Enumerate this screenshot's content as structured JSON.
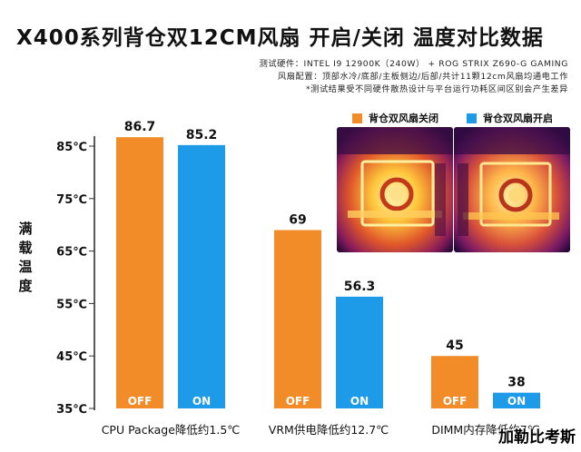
{
  "header": {
    "title": "X400系列背仓双12CM风扇 开启/关闭 温度对比数据",
    "info_line1": "测试硬件：INTEL I9 12900K（240W） + ROG STRIX Z690-G GAMING",
    "info_line2": "风扇配置：顶部水冷/底部/主板侧边/后部/共计11颗12cm风扇均通电工作",
    "info_line3": "*测试结果受不同硬件散热设计与平台运行功耗区间区别会产生差异"
  },
  "chart_data": {
    "type": "bar",
    "ylabel": "满载温度",
    "ylim": [
      35,
      88
    ],
    "yticks": [
      35,
      45,
      55,
      65,
      75,
      85
    ],
    "ytick_labels": [
      "35℃",
      "45℃",
      "55℃",
      "65℃",
      "75℃",
      "85℃"
    ],
    "categories": [
      "CPU Package降低约1.5℃",
      "VRM供电降低约12.7℃",
      "DIMM内存降低约7℃"
    ],
    "series": [
      {
        "name": "背仓双风扇关闭",
        "bar_label": "OFF",
        "color": "#F28C28",
        "values": [
          86.7,
          69,
          45
        ]
      },
      {
        "name": "背仓双风扇开启",
        "bar_label": "ON",
        "color": "#1E9BE8",
        "values": [
          85.2,
          56.3,
          38
        ]
      }
    ],
    "grid": false,
    "legend": "top-right"
  },
  "watermark": "加勒比考斯",
  "icons": {
    "photo_off": "thermal-image-fans-off",
    "photo_on": "thermal-image-fans-on"
  }
}
